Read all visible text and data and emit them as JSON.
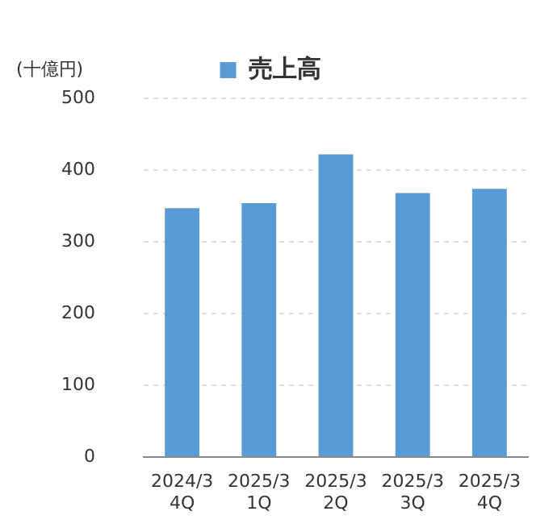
{
  "chart_data": {
    "type": "bar",
    "ylabel": "(十億円)",
    "categories": [
      "2024/3\n4Q",
      "2025/3\n1Q",
      "2025/3\n2Q",
      "2025/3\n3Q",
      "2025/3\n4Q"
    ],
    "series": [
      {
        "name": "売上高",
        "color": "#5b9bd5",
        "values": [
          347,
          354,
          422,
          368,
          374
        ]
      }
    ],
    "ylim": [
      0,
      500
    ],
    "yticks": [
      0,
      100,
      200,
      300,
      400,
      500
    ],
    "grid": "y",
    "legend": "top"
  }
}
